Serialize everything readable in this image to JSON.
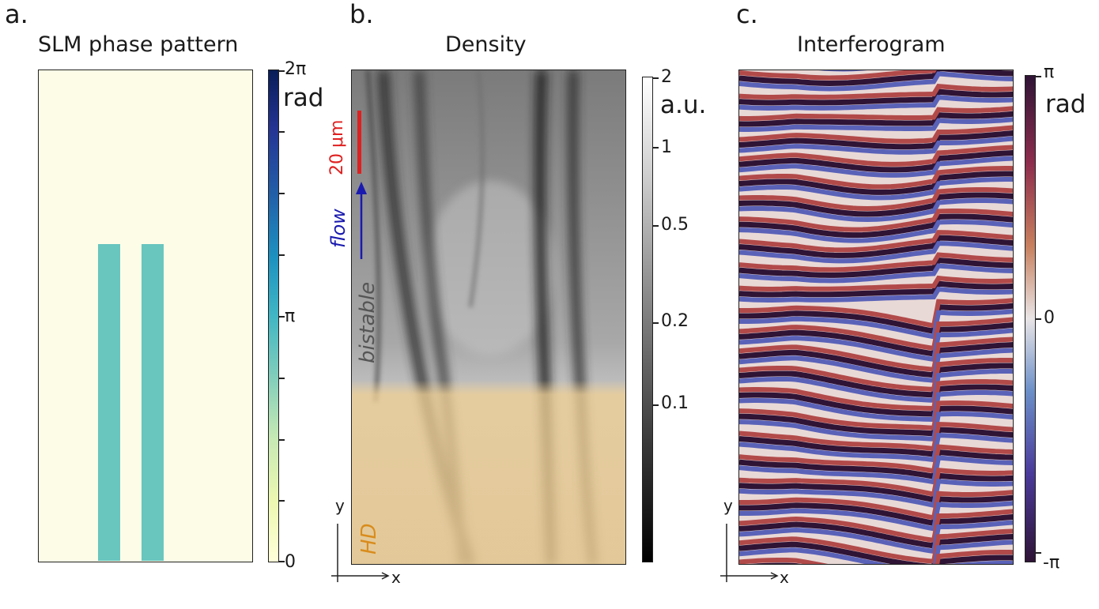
{
  "panels": {
    "a": {
      "letter": "a.",
      "title": "SLM phase pattern",
      "colorbar": {
        "max_label": "2π",
        "mid_label": "π",
        "min_label": "0",
        "unit": "rad"
      },
      "bars": [
        {
          "x_from": 0.277,
          "x_to": 0.38,
          "y_top": 0.355,
          "value_fraction": 0.4
        },
        {
          "x_from": 0.485,
          "x_to": 0.589,
          "y_top": 0.355,
          "value_fraction": 0.4
        }
      ]
    },
    "b": {
      "letter": "b.",
      "title": "Density",
      "colorbar": {
        "tick_labels": [
          "2",
          "1",
          "0.5",
          "0.2",
          "0.1"
        ],
        "unit": "a.u."
      },
      "scale_bar": "20 μm",
      "flow_label": "flow",
      "region_bistable": "bistable",
      "region_hd": "HD",
      "axis_x": "x",
      "axis_y": "y"
    },
    "c": {
      "letter": "c.",
      "title": "Interferogram",
      "colorbar": {
        "max_label": "π",
        "mid_label": "0",
        "min_label": "-π",
        "unit": "rad"
      },
      "axis_x": "x",
      "axis_y": "y"
    }
  },
  "colors": {
    "slm_background": "#fdfde7",
    "slm_bar": "#68c6bf",
    "scale_bar": "#e02020",
    "flow": "#1a1ab0",
    "bistable_text": "#555555",
    "hd_text": "#d98c1c",
    "hd_tint": "#f0cf93"
  }
}
